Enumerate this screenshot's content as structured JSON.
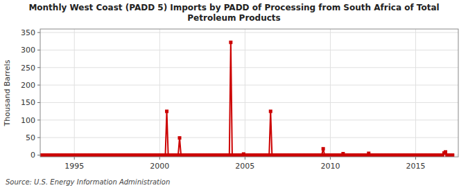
{
  "chart_data": {
    "type": "line",
    "title": "Monthly West Coast (PADD 5) Imports by PADD of Processing from South Africa of Total\nPetroleum Products",
    "y_label": "Thousand Barrels",
    "annotations": [
      "Source: U.S. Energy Information Administration"
    ],
    "xlim": [
      1993.0,
      2017.5
    ],
    "ylim": [
      -5,
      360
    ],
    "xticks": [
      1995,
      2000,
      2005,
      2010,
      2015
    ],
    "yticks": [
      0,
      50,
      100,
      150,
      200,
      250,
      300,
      350
    ],
    "grid": true,
    "x": [
      1993,
      1993.083333,
      1993.166667,
      1993.25,
      1993.333333,
      1993.416667,
      1993.5,
      1993.583333,
      1993.666667,
      1993.75,
      1993.833333,
      1993.916667,
      1994,
      1994.083333,
      1994.166667,
      1994.25,
      1994.333333,
      1994.416667,
      1994.5,
      1994.583333,
      1994.666667,
      1994.75,
      1994.833333,
      1994.916667,
      1995,
      1995.083333,
      1995.166667,
      1995.25,
      1995.333333,
      1995.416667,
      1995.5,
      1995.583333,
      1995.666667,
      1995.75,
      1995.833333,
      1995.916667,
      1996,
      1996.083333,
      1996.166667,
      1996.25,
      1996.333333,
      1996.416667,
      1996.5,
      1996.583333,
      1996.666667,
      1996.75,
      1996.833333,
      1996.916667,
      1997,
      1997.083333,
      1997.166667,
      1997.25,
      1997.333333,
      1997.416667,
      1997.5,
      1997.583333,
      1997.666667,
      1997.75,
      1997.833333,
      1997.916667,
      1998,
      1998.083333,
      1998.166667,
      1998.25,
      1998.333333,
      1998.416667,
      1998.5,
      1998.583333,
      1998.666667,
      1998.75,
      1998.833333,
      1998.916667,
      1999,
      1999.083333,
      1999.166667,
      1999.25,
      1999.333333,
      1999.416667,
      1999.5,
      1999.583333,
      1999.666667,
      1999.75,
      1999.833333,
      1999.916667,
      2000,
      2000.083333,
      2000.166667,
      2000.25,
      2000.333333,
      2000.416667,
      2000.5,
      2000.583333,
      2000.666667,
      2000.75,
      2000.833333,
      2000.916667,
      2001,
      2001.083333,
      2001.166667,
      2001.25,
      2001.333333,
      2001.416667,
      2001.5,
      2001.583333,
      2001.666667,
      2001.75,
      2001.833333,
      2001.916667,
      2002,
      2002.083333,
      2002.166667,
      2002.25,
      2002.333333,
      2002.416667,
      2002.5,
      2002.583333,
      2002.666667,
      2002.75,
      2002.833333,
      2002.916667,
      2003,
      2003.083333,
      2003.166667,
      2003.25,
      2003.333333,
      2003.416667,
      2003.5,
      2003.583333,
      2003.666667,
      2003.75,
      2003.833333,
      2003.916667,
      2004,
      2004.083333,
      2004.166667,
      2004.25,
      2004.333333,
      2004.416667,
      2004.5,
      2004.583333,
      2004.666667,
      2004.75,
      2004.833333,
      2004.916667,
      2005,
      2005.083333,
      2005.166667,
      2005.25,
      2005.333333,
      2005.416667,
      2005.5,
      2005.583333,
      2005.666667,
      2005.75,
      2005.833333,
      2005.916667,
      2006,
      2006.083333,
      2006.166667,
      2006.25,
      2006.333333,
      2006.416667,
      2006.5,
      2006.583333,
      2006.666667,
      2006.75,
      2006.833333,
      2006.916667,
      2007,
      2007.083333,
      2007.166667,
      2007.25,
      2007.333333,
      2007.416667,
      2007.5,
      2007.583333,
      2007.666667,
      2007.75,
      2007.833333,
      2007.916667,
      2008,
      2008.083333,
      2008.166667,
      2008.25,
      2008.333333,
      2008.416667,
      2008.5,
      2008.583333,
      2008.666667,
      2008.75,
      2008.833333,
      2008.916667,
      2009,
      2009.083333,
      2009.166667,
      2009.25,
      2009.333333,
      2009.416667,
      2009.5,
      2009.583333,
      2009.666667,
      2009.75,
      2009.833333,
      2009.916667,
      2010,
      2010.083333,
      2010.166667,
      2010.25,
      2010.333333,
      2010.416667,
      2010.5,
      2010.583333,
      2010.666667,
      2010.75,
      2010.833333,
      2010.916667,
      2011,
      2011.083333,
      2011.166667,
      2011.25,
      2011.333333,
      2011.416667,
      2011.5,
      2011.583333,
      2011.666667,
      2011.75,
      2011.833333,
      2011.916667,
      2012,
      2012.083333,
      2012.166667,
      2012.25,
      2012.333333,
      2012.416667,
      2012.5,
      2012.583333,
      2012.666667,
      2012.75,
      2012.833333,
      2012.916667,
      2013,
      2013.083333,
      2013.166667,
      2013.25,
      2013.333333,
      2013.416667,
      2013.5,
      2013.583333,
      2013.666667,
      2013.75,
      2013.833333,
      2013.916667,
      2014,
      2014.083333,
      2014.166667,
      2014.25,
      2014.333333,
      2014.416667,
      2014.5,
      2014.583333,
      2014.666667,
      2014.75,
      2014.833333,
      2014.916667,
      2015,
      2015.083333,
      2015.166667,
      2015.25,
      2015.333333,
      2015.416667,
      2015.5,
      2015.583333,
      2015.666667,
      2015.75,
      2015.833333,
      2015.916667,
      2016,
      2016.083333,
      2016.166667,
      2016.25,
      2016.333333,
      2016.416667,
      2016.5,
      2016.583333,
      2016.666667,
      2016.75,
      2016.833333,
      2016.916667,
      2017,
      2017.083333,
      2017.166667
    ],
    "series": [
      {
        "color": "#cc0000",
        "marker": "square",
        "values": [
          0,
          0,
          0,
          0,
          0,
          0,
          0,
          0,
          0,
          0,
          0,
          0,
          0,
          0,
          0,
          0,
          0,
          0,
          0,
          0,
          0,
          0,
          0,
          0,
          0,
          0,
          0,
          0,
          0,
          0,
          0,
          0,
          0,
          0,
          0,
          0,
          0,
          0,
          0,
          0,
          0,
          0,
          0,
          0,
          0,
          0,
          0,
          0,
          0,
          0,
          0,
          0,
          0,
          0,
          0,
          0,
          0,
          0,
          0,
          0,
          0,
          0,
          0,
          0,
          0,
          0,
          0,
          0,
          0,
          0,
          0,
          0,
          0,
          0,
          0,
          0,
          0,
          0,
          0,
          0,
          0,
          0,
          0,
          0,
          0,
          0,
          0,
          0,
          0,
          125,
          0,
          0,
          0,
          0,
          0,
          0,
          0,
          0,
          49,
          0,
          0,
          0,
          0,
          0,
          0,
          0,
          0,
          0,
          0,
          0,
          0,
          0,
          0,
          0,
          0,
          0,
          0,
          0,
          0,
          0,
          0,
          0,
          0,
          0,
          0,
          0,
          0,
          0,
          0,
          0,
          0,
          0,
          0,
          0,
          322,
          0,
          0,
          0,
          0,
          0,
          0,
          0,
          0,
          3,
          0,
          0,
          0,
          0,
          0,
          0,
          0,
          0,
          0,
          0,
          0,
          0,
          0,
          0,
          0,
          0,
          0,
          0,
          125,
          0,
          0,
          0,
          0,
          0,
          0,
          0,
          0,
          0,
          0,
          0,
          0,
          0,
          0,
          0,
          0,
          0,
          0,
          0,
          0,
          0,
          0,
          0,
          0,
          0,
          0,
          0,
          0,
          0,
          0,
          0,
          0,
          0,
          0,
          0,
          0,
          18,
          0,
          0,
          0,
          0,
          0,
          0,
          0,
          0,
          0,
          0,
          0,
          0,
          0,
          4,
          0,
          0,
          0,
          0,
          0,
          0,
          0,
          0,
          0,
          0,
          0,
          0,
          0,
          0,
          0,
          0,
          0,
          5,
          0,
          0,
          0,
          0,
          0,
          0,
          0,
          0,
          0,
          0,
          0,
          0,
          0,
          0,
          0,
          0,
          0,
          0,
          0,
          0,
          0,
          0,
          0,
          0,
          0,
          0,
          0,
          0,
          0,
          0,
          0,
          0,
          0,
          0,
          0,
          0,
          0,
          0,
          0,
          0,
          0,
          0,
          0,
          0,
          0,
          0,
          0,
          0,
          0,
          0,
          0,
          0,
          6,
          9,
          0,
          0,
          0,
          0,
          0
        ]
      }
    ]
  }
}
